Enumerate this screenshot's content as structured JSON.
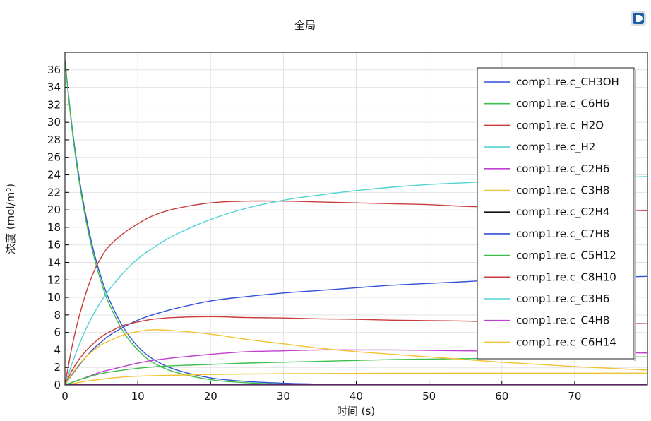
{
  "header": {
    "title": "全局"
  },
  "icons": {
    "logo": "comsol-logo-icon"
  },
  "colors": {
    "grid": "#e3e3e3",
    "axis": "#000000",
    "background": "#ffffff"
  },
  "chart_data": {
    "type": "line",
    "title": "全局",
    "xlabel": "时间 (s)",
    "ylabel": "浓度 (mol/m³)",
    "xlim": [
      0,
      80
    ],
    "ylim": [
      0,
      38
    ],
    "xticks": [
      "0",
      "10",
      "20",
      "30",
      "40",
      "50",
      "60",
      "70"
    ],
    "yticks": [
      "0",
      "2",
      "4",
      "6",
      "8",
      "10",
      "12",
      "14",
      "16",
      "18",
      "20",
      "22",
      "24",
      "26",
      "28",
      "30",
      "32",
      "34",
      "36"
    ],
    "grid": true,
    "legend_position": "top-right",
    "x": [
      0,
      1,
      2,
      3,
      4,
      5,
      6,
      8,
      10,
      12,
      15,
      20,
      25,
      30,
      35,
      40,
      45,
      50,
      55,
      60,
      65,
      70,
      75,
      80
    ],
    "series": [
      {
        "name": "comp1.re.c_CH3OH",
        "color": "#3050d8",
        "values": [
          37,
          29.3,
          23.4,
          18.8,
          15.1,
          12.2,
          9.9,
          6.6,
          4.4,
          3.0,
          1.8,
          0.8,
          0.4,
          0.2,
          0.1,
          0.05,
          0.03,
          0.02,
          0.01,
          0.01,
          0,
          0,
          0,
          0
        ]
      },
      {
        "name": "comp1.re.c_C6H6",
        "color": "#3cbf4a",
        "values": [
          37,
          29.0,
          23.0,
          18.3,
          14.6,
          11.7,
          9.4,
          6.1,
          4.0,
          2.6,
          1.5,
          0.6,
          0.25,
          0.1,
          0.05,
          0.02,
          0.01,
          0,
          0,
          0,
          0,
          0,
          0,
          0
        ]
      },
      {
        "name": "comp1.re.c_H2O",
        "color": "#c83c3c",
        "values": [
          0,
          4.5,
          8.0,
          10.8,
          13.0,
          14.6,
          15.8,
          17.3,
          18.4,
          19.3,
          20.1,
          20.8,
          21.0,
          21.0,
          20.9,
          20.8,
          20.7,
          20.6,
          20.4,
          20.3,
          20.2,
          20.1,
          20.0,
          19.9
        ]
      },
      {
        "name": "comp1.re.c_H2",
        "color": "#4fd3d3",
        "values": [
          0,
          2.5,
          4.7,
          6.6,
          8.2,
          9.6,
          10.8,
          12.8,
          14.4,
          15.6,
          17.1,
          18.9,
          20.2,
          21.1,
          21.7,
          22.2,
          22.6,
          22.9,
          23.1,
          23.3,
          23.5,
          23.6,
          23.7,
          23.8
        ]
      },
      {
        "name": "comp1.re.c_C2H6",
        "color": "#c03fd0",
        "values": [
          0,
          0.3,
          0.6,
          0.9,
          1.2,
          1.5,
          1.7,
          2.1,
          2.5,
          2.8,
          3.1,
          3.5,
          3.8,
          3.9,
          4.0,
          4.0,
          4.0,
          3.95,
          3.9,
          3.85,
          3.8,
          3.75,
          3.7,
          3.65
        ]
      },
      {
        "name": "comp1.re.c_C3H8",
        "color": "#f2c230",
        "values": [
          0,
          0.15,
          0.3,
          0.45,
          0.55,
          0.65,
          0.75,
          0.9,
          1.0,
          1.05,
          1.1,
          1.2,
          1.25,
          1.28,
          1.3,
          1.32,
          1.33,
          1.34,
          1.35,
          1.35,
          1.35,
          1.35,
          1.35,
          1.35
        ]
      },
      {
        "name": "comp1.re.c_C2H4",
        "color": "#111111",
        "values": [
          0,
          0.02,
          0.03,
          0.04,
          0.05,
          0.05,
          0.05,
          0.05,
          0.05,
          0.05,
          0.05,
          0.05,
          0.05,
          0.05,
          0.05,
          0.05,
          0.05,
          0.05,
          0.05,
          0.05,
          0.05,
          0.05,
          0.05,
          0.05
        ]
      },
      {
        "name": "comp1.re.c_C7H8",
        "color": "#3050d8",
        "values": [
          0,
          1.2,
          2.3,
          3.3,
          4.2,
          4.9,
          5.6,
          6.6,
          7.4,
          8.0,
          8.7,
          9.6,
          10.1,
          10.5,
          10.8,
          11.1,
          11.4,
          11.6,
          11.8,
          12.0,
          12.1,
          12.2,
          12.3,
          12.4
        ]
      },
      {
        "name": "comp1.re.c_C5H12",
        "color": "#3cbf4a",
        "values": [
          0,
          0.3,
          0.6,
          0.85,
          1.1,
          1.3,
          1.45,
          1.7,
          1.9,
          2.05,
          2.2,
          2.35,
          2.5,
          2.6,
          2.7,
          2.8,
          2.9,
          2.95,
          3.0,
          3.05,
          3.1,
          3.15,
          3.2,
          3.2
        ]
      },
      {
        "name": "comp1.re.c_C8H10",
        "color": "#c83c3c",
        "values": [
          0,
          1.7,
          3.0,
          4.0,
          4.8,
          5.5,
          6.0,
          6.8,
          7.2,
          7.5,
          7.7,
          7.8,
          7.7,
          7.65,
          7.55,
          7.5,
          7.4,
          7.35,
          7.3,
          7.2,
          7.15,
          7.1,
          7.05,
          7.0
        ]
      },
      {
        "name": "comp1.re.c_C3H6",
        "color": "#4fd3d3",
        "values": [
          0,
          0.02,
          0.03,
          0.04,
          0.05,
          0.05,
          0.05,
          0.05,
          0.05,
          0.05,
          0.05,
          0.05,
          0.05,
          0.05,
          0.05,
          0.05,
          0.05,
          0.05,
          0.05,
          0.05,
          0.05,
          0.05,
          0.05,
          0.05
        ]
      },
      {
        "name": "comp1.re.c_C4H8",
        "color": "#c03fd0",
        "values": [
          0,
          0.02,
          0.03,
          0.04,
          0.05,
          0.05,
          0.05,
          0.05,
          0.05,
          0.05,
          0.05,
          0.05,
          0.05,
          0.05,
          0.05,
          0.05,
          0.05,
          0.05,
          0.05,
          0.05,
          0.05,
          0.05,
          0.05,
          0.05
        ]
      },
      {
        "name": "comp1.re.c_C6H14",
        "color": "#f2c230",
        "values": [
          0,
          1.3,
          2.4,
          3.3,
          4.0,
          4.6,
          5.0,
          5.7,
          6.1,
          6.3,
          6.2,
          5.8,
          5.2,
          4.7,
          4.2,
          3.8,
          3.5,
          3.2,
          2.9,
          2.6,
          2.35,
          2.1,
          1.9,
          1.7
        ]
      }
    ]
  }
}
